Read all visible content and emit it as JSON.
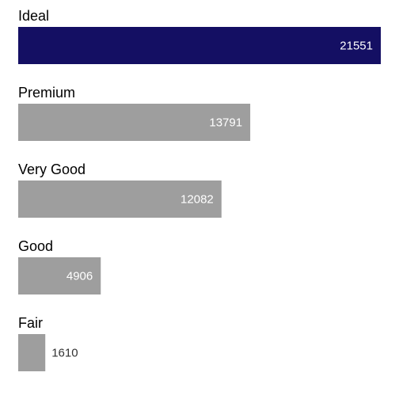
{
  "chart_data": {
    "type": "bar",
    "orientation": "horizontal",
    "categories": [
      "Ideal",
      "Premium",
      "Very Good",
      "Good",
      "Fair"
    ],
    "values": [
      21551,
      13791,
      12082,
      4906,
      1610
    ],
    "highlight_category": "Ideal",
    "colors": {
      "highlight": "#140f63",
      "default": "#9e9e9e",
      "label_inside": "#ffffff",
      "label_outside": "#333333",
      "text": "#000000"
    },
    "title": "",
    "xlabel": "",
    "ylabel": "",
    "xlim": [
      0,
      21551
    ],
    "grid": false,
    "legend": "none"
  }
}
